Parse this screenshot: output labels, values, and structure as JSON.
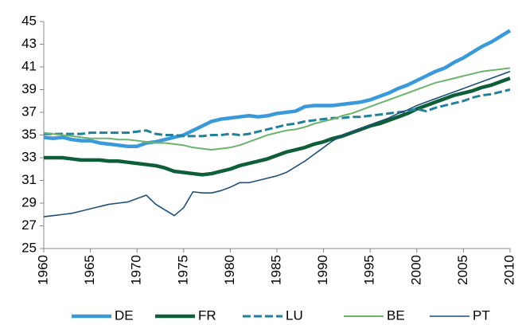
{
  "chart_data": {
    "type": "line",
    "x": [
      1960,
      1961,
      1962,
      1963,
      1964,
      1965,
      1966,
      1967,
      1968,
      1969,
      1970,
      1971,
      1972,
      1973,
      1974,
      1975,
      1976,
      1977,
      1978,
      1979,
      1980,
      1981,
      1982,
      1983,
      1984,
      1985,
      1986,
      1987,
      1988,
      1989,
      1990,
      1991,
      1992,
      1993,
      1994,
      1995,
      1996,
      1997,
      1998,
      1999,
      2000,
      2001,
      2002,
      2003,
      2004,
      2005,
      2006,
      2007,
      2008,
      2009,
      2010
    ],
    "series": [
      {
        "name": "DE",
        "color": "#3a9ad9",
        "values": [
          34.8,
          34.7,
          34.8,
          34.6,
          34.5,
          34.5,
          34.3,
          34.2,
          34.1,
          34.0,
          34.0,
          34.3,
          34.4,
          34.6,
          34.8,
          35.0,
          35.4,
          35.8,
          36.2,
          36.4,
          36.5,
          36.6,
          36.7,
          36.6,
          36.7,
          36.9,
          37.0,
          37.1,
          37.5,
          37.6,
          37.6,
          37.6,
          37.7,
          37.8,
          37.9,
          38.1,
          38.4,
          38.7,
          39.1,
          39.4,
          39.8,
          40.2,
          40.6,
          40.9,
          41.4,
          41.8,
          42.3,
          42.8,
          43.2,
          43.7,
          44.2
        ]
      },
      {
        "name": "FR",
        "color": "#0f5e3a",
        "values": [
          33.0,
          33.0,
          33.0,
          32.9,
          32.8,
          32.8,
          32.8,
          32.7,
          32.7,
          32.6,
          32.5,
          32.4,
          32.3,
          32.1,
          31.8,
          31.7,
          31.6,
          31.5,
          31.6,
          31.8,
          32.0,
          32.3,
          32.5,
          32.7,
          32.9,
          33.2,
          33.5,
          33.7,
          33.9,
          34.2,
          34.4,
          34.7,
          34.9,
          35.2,
          35.5,
          35.8,
          36.0,
          36.3,
          36.6,
          36.9,
          37.3,
          37.6,
          37.9,
          38.2,
          38.5,
          38.7,
          38.9,
          39.2,
          39.4,
          39.7,
          40.0
        ]
      },
      {
        "name": "LU",
        "color": "#22809b",
        "dash": true,
        "values": [
          35.1,
          35.1,
          35.1,
          35.1,
          35.1,
          35.2,
          35.2,
          35.2,
          35.2,
          35.2,
          35.3,
          35.4,
          35.1,
          35.0,
          35.0,
          34.9,
          34.9,
          34.9,
          35.0,
          35.0,
          35.1,
          35.0,
          35.1,
          35.3,
          35.5,
          35.7,
          35.9,
          36.0,
          36.2,
          36.3,
          36.4,
          36.5,
          36.5,
          36.6,
          36.6,
          36.7,
          36.8,
          36.9,
          37.0,
          37.1,
          37.3,
          37.1,
          37.4,
          37.6,
          37.8,
          38.0,
          38.3,
          38.5,
          38.6,
          38.8,
          39.0
        ]
      },
      {
        "name": "BE",
        "color": "#6cb46c",
        "values": [
          35.2,
          35.1,
          35.0,
          34.9,
          34.8,
          34.7,
          34.7,
          34.7,
          34.6,
          34.6,
          34.5,
          34.4,
          34.3,
          34.3,
          34.2,
          34.1,
          33.9,
          33.8,
          33.7,
          33.8,
          33.9,
          34.1,
          34.4,
          34.7,
          35.0,
          35.2,
          35.4,
          35.5,
          35.7,
          36.0,
          36.2,
          36.4,
          36.7,
          36.9,
          37.2,
          37.5,
          37.8,
          38.1,
          38.4,
          38.7,
          39.0,
          39.3,
          39.6,
          39.8,
          40.0,
          40.2,
          40.4,
          40.6,
          40.7,
          40.8,
          40.9
        ]
      },
      {
        "name": "PT",
        "color": "#1d4f7a",
        "values": [
          27.8,
          27.9,
          28.0,
          28.1,
          28.3,
          28.5,
          28.7,
          28.9,
          29.0,
          29.1,
          29.4,
          29.7,
          28.9,
          28.4,
          27.9,
          28.6,
          30.0,
          29.9,
          29.9,
          30.1,
          30.4,
          30.8,
          30.8,
          31.0,
          31.2,
          31.4,
          31.7,
          32.2,
          32.7,
          33.3,
          33.9,
          34.5,
          34.9,
          35.3,
          35.6,
          35.9,
          36.2,
          36.5,
          36.9,
          37.2,
          37.6,
          37.9,
          38.2,
          38.5,
          38.8,
          39.1,
          39.4,
          39.7,
          40.0,
          40.3,
          40.6
        ]
      }
    ],
    "xlim": [
      1960,
      2010
    ],
    "xticks": [
      1960,
      1965,
      1970,
      1975,
      1980,
      1985,
      1990,
      1995,
      2000,
      2005,
      2010
    ],
    "ylim": [
      25,
      45
    ],
    "yticks": [
      25,
      27,
      29,
      31,
      33,
      35,
      37,
      39,
      41,
      43,
      45
    ],
    "grid": false,
    "legend": "bottom"
  }
}
